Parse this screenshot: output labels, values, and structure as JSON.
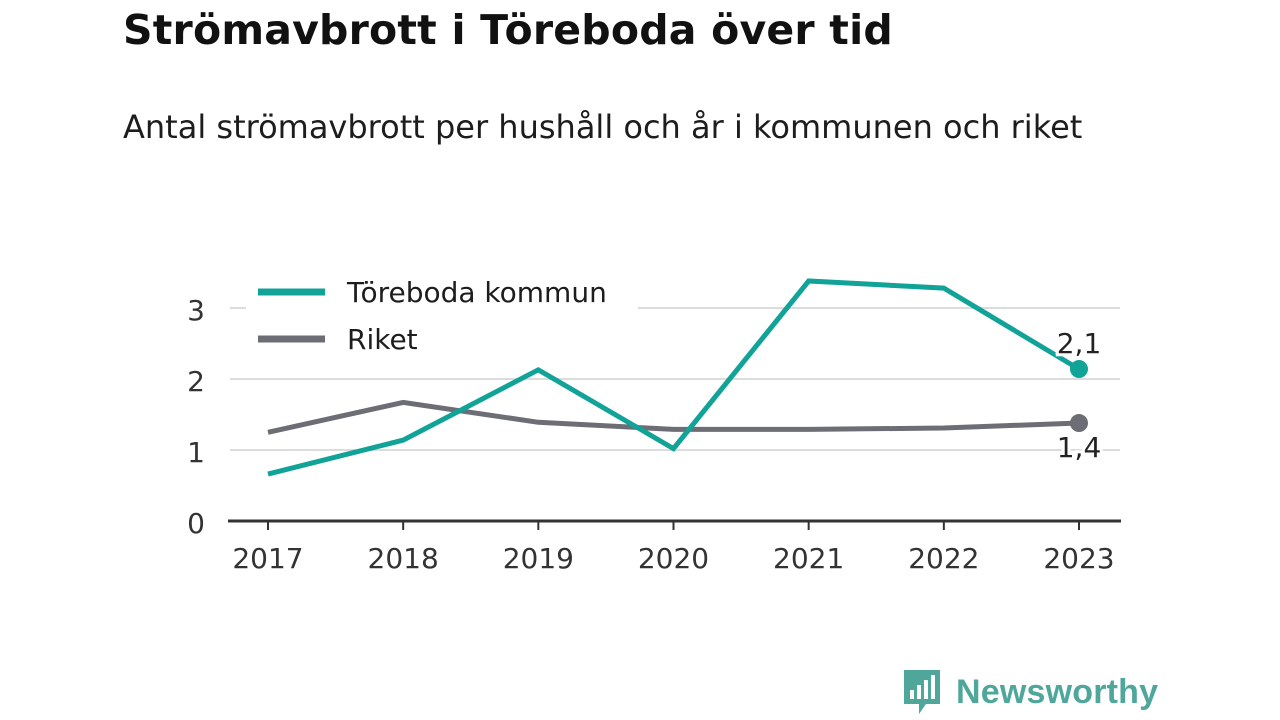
{
  "title": "Strömavbrott i Töreboda över tid",
  "subtitle": "Antal strömavbrott per hushåll och år i kommunen och riket",
  "brand": {
    "name": "Newsworthy",
    "color": "#4fa79c",
    "icon": "newsworthy-logo-icon"
  },
  "chart_data": {
    "type": "line",
    "x": [
      "2017",
      "2018",
      "2019",
      "2020",
      "2021",
      "2022",
      "2023"
    ],
    "series": [
      {
        "name": "Töreboda kommun",
        "color": "#11a398",
        "values": [
          0.66,
          1.14,
          2.13,
          1.02,
          3.38,
          3.28,
          2.14
        ],
        "end_label": "2,1"
      },
      {
        "name": "Riket",
        "color": "#6d6d75",
        "values": [
          1.25,
          1.67,
          1.39,
          1.29,
          1.29,
          1.31,
          1.38
        ],
        "end_label": "1,4"
      }
    ],
    "ylim": [
      0,
      3.5
    ],
    "yticks": [
      "0",
      "1",
      "2",
      "3"
    ],
    "grid": true,
    "legend": "top-left",
    "xlabel": "",
    "ylabel": ""
  }
}
